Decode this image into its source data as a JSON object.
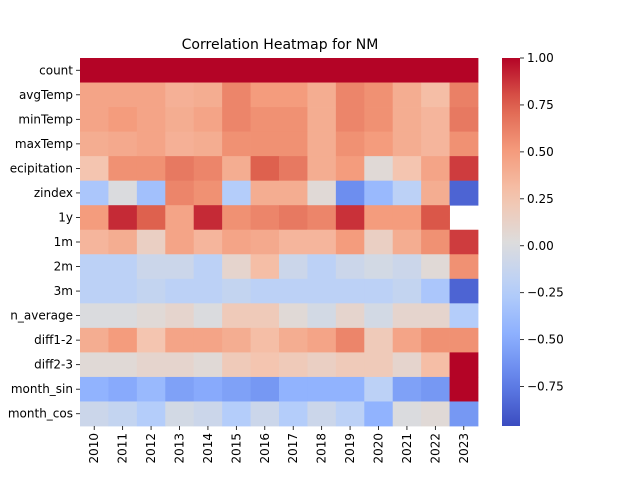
{
  "chart_data": {
    "type": "heatmap",
    "title": "Correlation Heatmap for NM",
    "xlabel": "",
    "ylabel": "",
    "x": [
      "2010",
      "2011",
      "2012",
      "2013",
      "2014",
      "2015",
      "2016",
      "2017",
      "2018",
      "2019",
      "2020",
      "2021",
      "2022",
      "2023"
    ],
    "y": [
      "count",
      "avgTemp",
      "minTemp",
      "maxTemp",
      "precipitation",
      "zindex",
      "1y",
      "1m",
      "2m",
      "3m",
      "month_average",
      "diff1-2",
      "diff2-3",
      "month_sin",
      "month_cos"
    ],
    "y_tick_labels": [
      "count",
      "avgTemp",
      "minTemp",
      "maxTemp",
      "ecipitation",
      "zindex",
      "1y",
      "1m",
      "2m",
      "3m",
      "n_average",
      "diff1-2",
      "diff2-3",
      "month_sin",
      "month_cos"
    ],
    "values": [
      [
        1.0,
        1.0,
        1.0,
        1.0,
        1.0,
        1.0,
        1.0,
        1.0,
        1.0,
        1.0,
        1.0,
        1.0,
        1.0,
        1.0
      ],
      [
        0.45,
        0.45,
        0.45,
        0.38,
        0.4,
        0.6,
        0.5,
        0.5,
        0.4,
        0.6,
        0.55,
        0.4,
        0.3,
        0.62
      ],
      [
        0.45,
        0.5,
        0.45,
        0.4,
        0.45,
        0.6,
        0.55,
        0.55,
        0.4,
        0.6,
        0.55,
        0.4,
        0.35,
        0.65
      ],
      [
        0.4,
        0.42,
        0.45,
        0.38,
        0.4,
        0.55,
        0.55,
        0.55,
        0.4,
        0.55,
        0.5,
        0.4,
        0.35,
        0.55
      ],
      [
        0.25,
        0.55,
        0.55,
        0.65,
        0.6,
        0.4,
        0.75,
        0.65,
        0.4,
        0.5,
        0.05,
        0.25,
        0.45,
        0.85
      ],
      [
        -0.3,
        0.0,
        -0.35,
        0.6,
        0.55,
        -0.25,
        0.4,
        0.4,
        0.05,
        -0.65,
        -0.4,
        -0.2,
        0.4,
        -0.85
      ],
      [
        0.5,
        0.9,
        0.75,
        0.45,
        0.9,
        0.55,
        0.6,
        0.65,
        0.6,
        0.88,
        0.5,
        0.5,
        0.78,
        null
      ],
      [
        0.35,
        0.4,
        0.15,
        0.45,
        0.35,
        0.45,
        0.42,
        0.35,
        0.35,
        0.5,
        0.15,
        0.4,
        0.55,
        0.85
      ],
      [
        -0.2,
        -0.2,
        -0.1,
        -0.1,
        -0.2,
        0.1,
        0.3,
        -0.1,
        -0.2,
        -0.1,
        -0.05,
        -0.1,
        0.05,
        0.55
      ],
      [
        -0.2,
        -0.2,
        -0.15,
        -0.2,
        -0.2,
        -0.15,
        -0.2,
        -0.2,
        -0.2,
        -0.2,
        -0.2,
        -0.15,
        -0.3,
        -0.85
      ],
      [
        0.0,
        0.0,
        0.05,
        0.1,
        0.0,
        0.2,
        0.2,
        0.05,
        -0.05,
        0.1,
        -0.05,
        0.1,
        0.1,
        -0.25
      ],
      [
        0.4,
        0.5,
        0.25,
        0.45,
        0.45,
        0.4,
        0.3,
        0.4,
        0.45,
        0.6,
        0.2,
        0.45,
        0.55,
        0.55
      ],
      [
        0.05,
        0.05,
        0.1,
        0.1,
        0.05,
        0.2,
        0.25,
        0.2,
        0.15,
        0.2,
        0.2,
        0.1,
        0.3,
        1.0
      ],
      [
        -0.45,
        -0.5,
        -0.4,
        -0.55,
        -0.5,
        -0.55,
        -0.6,
        -0.45,
        -0.45,
        -0.45,
        -0.2,
        -0.55,
        -0.6,
        1.0
      ],
      [
        -0.1,
        -0.15,
        -0.25,
        -0.05,
        -0.1,
        -0.25,
        -0.1,
        -0.25,
        -0.1,
        -0.2,
        -0.45,
        0.0,
        0.05,
        -0.6
      ]
    ],
    "colorbar": {
      "min": -0.96,
      "max": 1.0,
      "ticks": [
        1.0,
        0.75,
        0.5,
        0.25,
        0.0,
        -0.25,
        -0.5,
        -0.75
      ],
      "tick_labels": [
        "1.00",
        "0.75",
        "0.50",
        "0.25",
        "0.00",
        "−0.25",
        "−0.50",
        "−0.75"
      ],
      "colormap": "coolwarm"
    },
    "grid": false,
    "legend": "colorbar-right"
  }
}
